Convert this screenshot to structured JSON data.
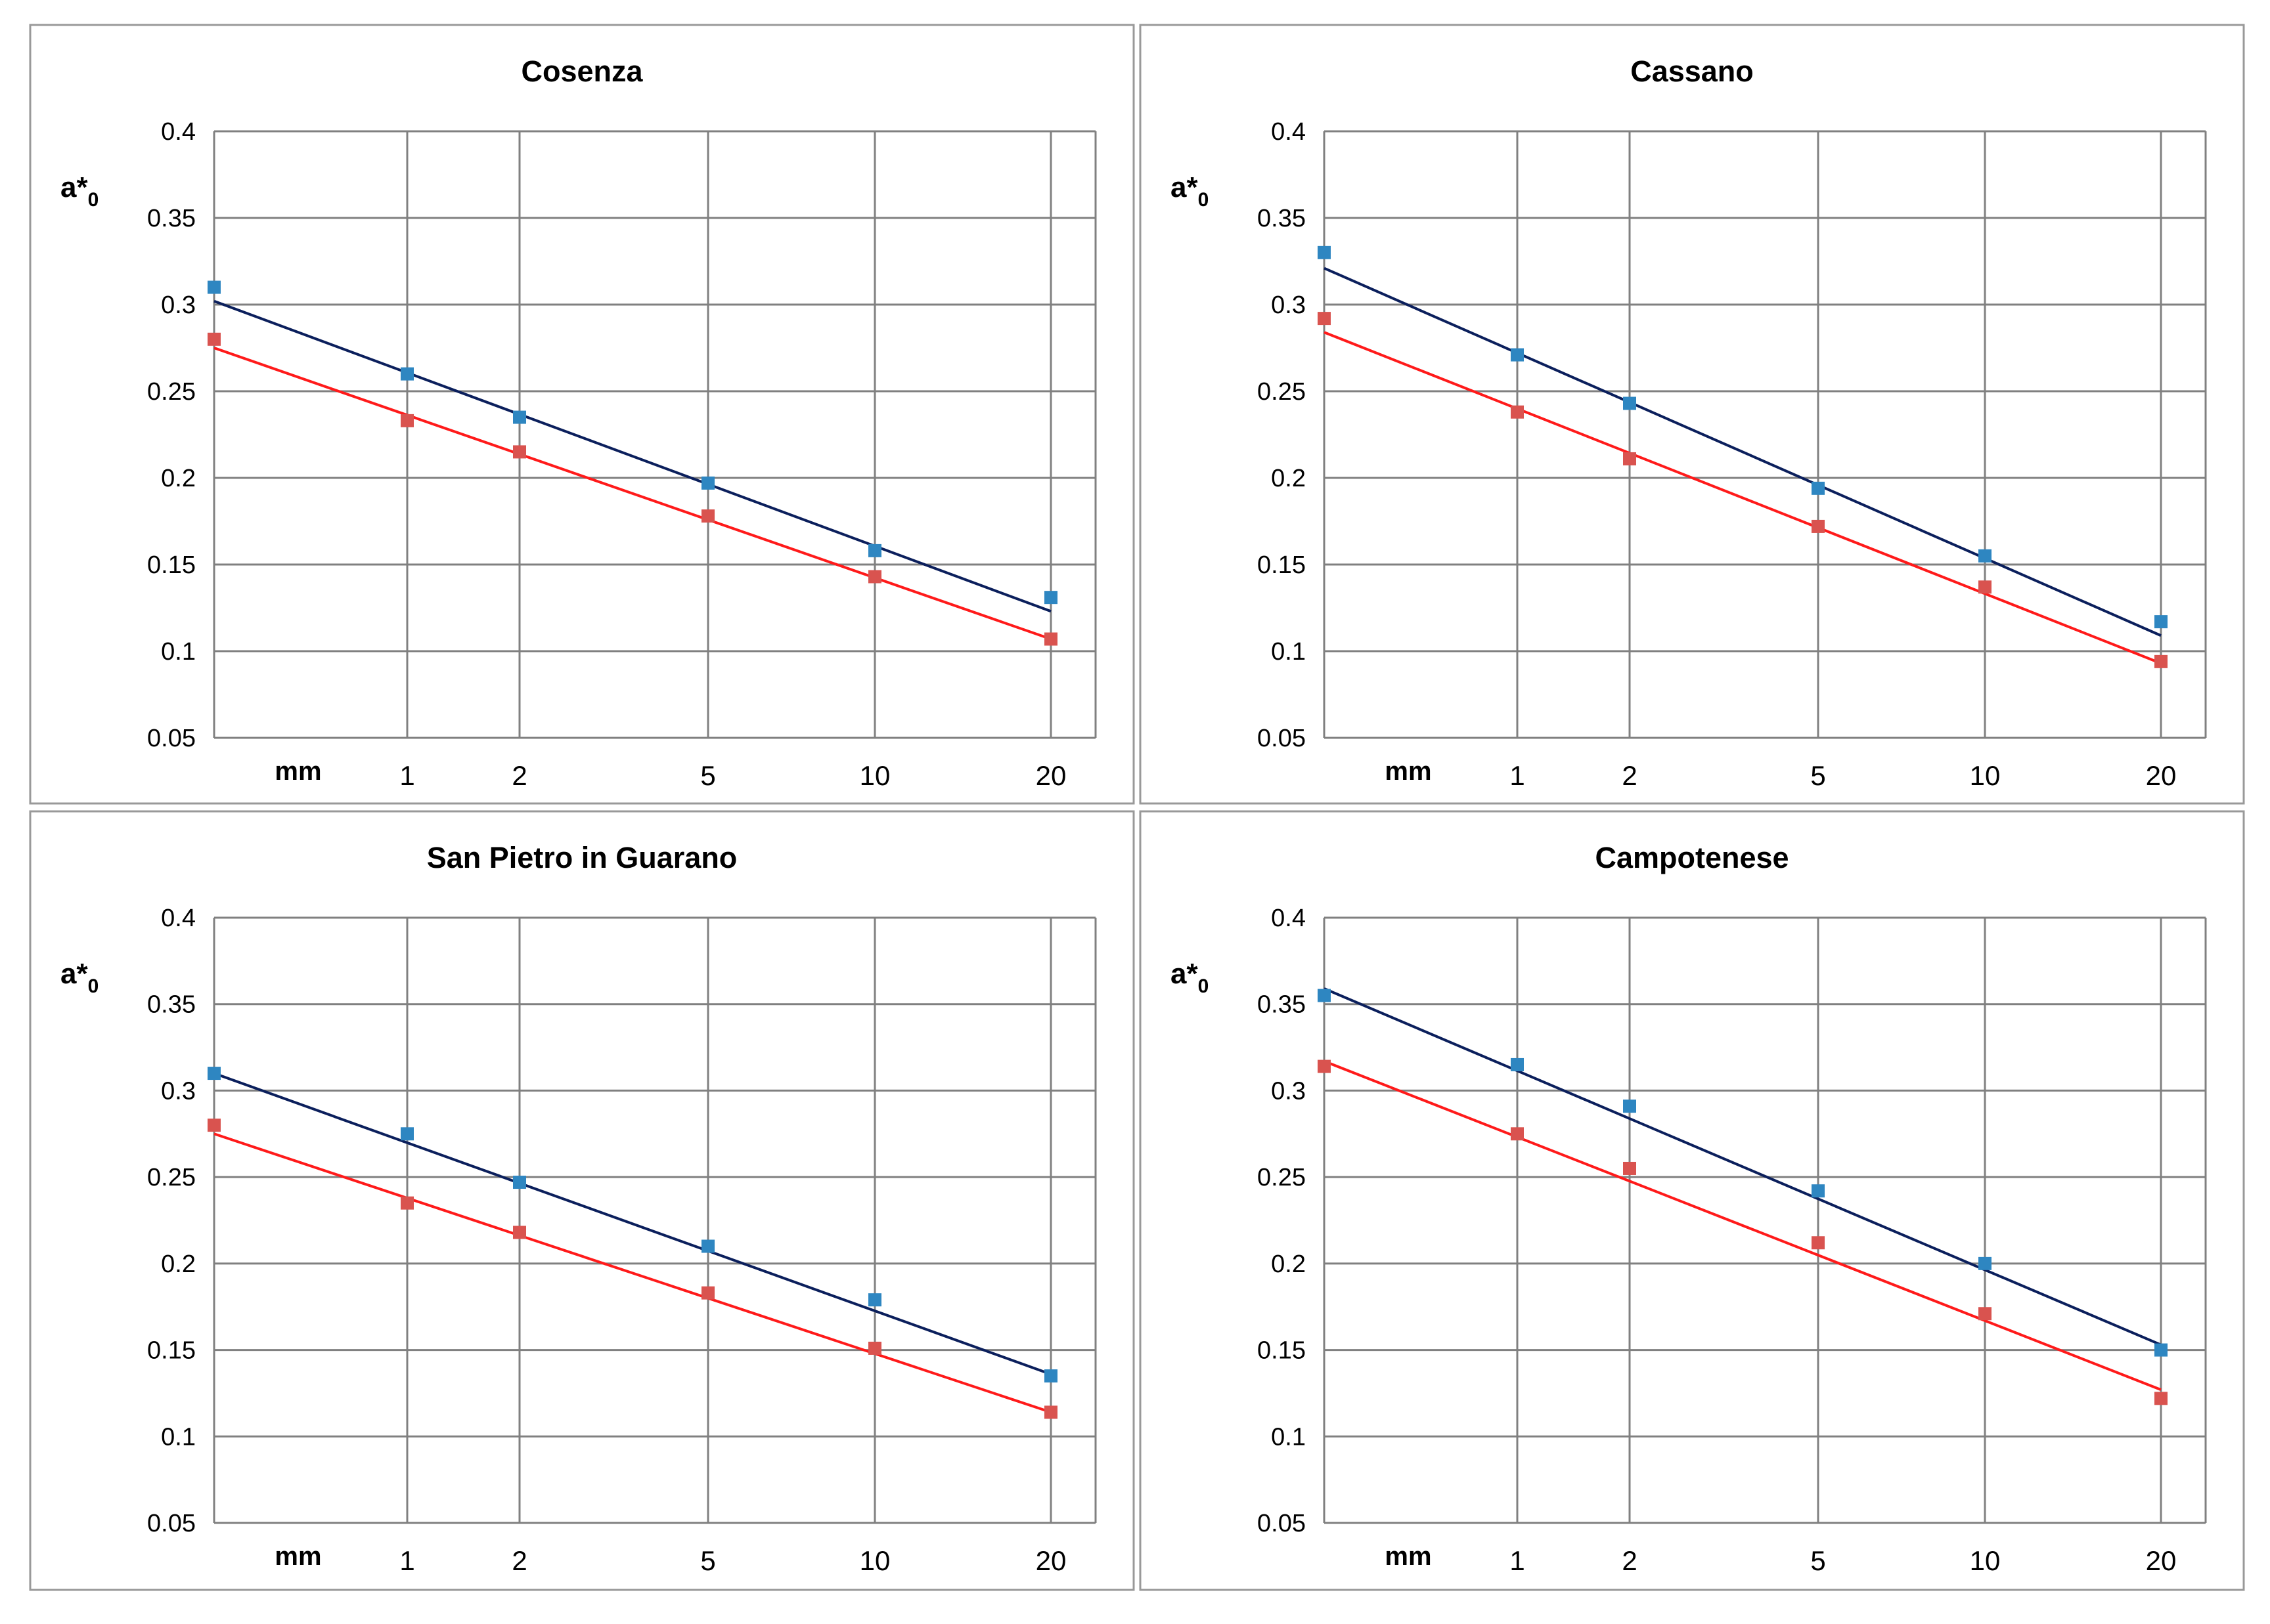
{
  "x_unit_label": "mm",
  "y_axis_label": "a*",
  "y_axis_label_sub": "0",
  "colors": {
    "blue_marker": "#2E86C1",
    "blue_line": "#0B1F5C",
    "red_marker": "#D9534F",
    "red_line": "#FF1A1A",
    "grid": "#808080",
    "frame": "#999999"
  },
  "chart_data": [
    {
      "type": "scatter",
      "title": "Cosenza",
      "xlabel": "mm",
      "ylabel": "a*0",
      "x_ticks": [
        1,
        2,
        5,
        10,
        20
      ],
      "y_ticks": [
        0.05,
        0.1,
        0.15,
        0.2,
        0.25,
        0.3,
        0.35,
        0.4
      ],
      "ylim": [
        0.05,
        0.4
      ],
      "series": [
        {
          "name": "blue",
          "x": [
            0.5,
            1,
            2,
            5,
            10,
            20
          ],
          "y": [
            0.31,
            0.26,
            0.235,
            0.197,
            0.158,
            0.131
          ],
          "fit": [
            0.302,
            0.123
          ]
        },
        {
          "name": "red",
          "x": [
            0.5,
            1,
            2,
            5,
            10,
            20
          ],
          "y": [
            0.28,
            0.233,
            0.215,
            0.178,
            0.143,
            0.107
          ],
          "fit": [
            0.275,
            0.107
          ]
        }
      ]
    },
    {
      "type": "scatter",
      "title": "Cassano",
      "xlabel": "mm",
      "ylabel": "a*0",
      "x_ticks": [
        1,
        2,
        5,
        10,
        20
      ],
      "y_ticks": [
        0.05,
        0.1,
        0.15,
        0.2,
        0.25,
        0.3,
        0.35,
        0.4
      ],
      "ylim": [
        0.05,
        0.4
      ],
      "series": [
        {
          "name": "blue",
          "x": [
            0.5,
            1,
            2,
            5,
            10,
            20
          ],
          "y": [
            0.33,
            0.271,
            0.243,
            0.194,
            0.155,
            0.117
          ],
          "fit": [
            0.321,
            0.109
          ]
        },
        {
          "name": "red",
          "x": [
            0.5,
            1,
            2,
            5,
            10,
            20
          ],
          "y": [
            0.292,
            0.238,
            0.211,
            0.172,
            0.137,
            0.094
          ],
          "fit": [
            0.284,
            0.093
          ]
        }
      ]
    },
    {
      "type": "scatter",
      "title": "San Pietro in Guarano",
      "xlabel": "mm",
      "ylabel": "a*0",
      "x_ticks": [
        1,
        2,
        5,
        10,
        20
      ],
      "y_ticks": [
        0.05,
        0.1,
        0.15,
        0.2,
        0.25,
        0.3,
        0.35,
        0.4
      ],
      "ylim": [
        0.05,
        0.4
      ],
      "series": [
        {
          "name": "blue",
          "x": [
            0.5,
            1,
            2,
            5,
            10,
            20
          ],
          "y": [
            0.31,
            0.275,
            0.247,
            0.21,
            0.179,
            0.135
          ],
          "fit": [
            0.31,
            0.136
          ]
        },
        {
          "name": "red",
          "x": [
            0.5,
            1,
            2,
            5,
            10,
            20
          ],
          "y": [
            0.28,
            0.235,
            0.218,
            0.183,
            0.151,
            0.114
          ],
          "fit": [
            0.275,
            0.114
          ]
        }
      ]
    },
    {
      "type": "scatter",
      "title": "Campotenese",
      "xlabel": "mm",
      "ylabel": "a*0",
      "x_ticks": [
        1,
        2,
        5,
        10,
        20
      ],
      "y_ticks": [
        0.05,
        0.1,
        0.15,
        0.2,
        0.25,
        0.3,
        0.35,
        0.4
      ],
      "ylim": [
        0.05,
        0.4
      ],
      "series": [
        {
          "name": "blue",
          "x": [
            0.5,
            1,
            2,
            5,
            10,
            20
          ],
          "y": [
            0.355,
            0.315,
            0.291,
            0.242,
            0.2,
            0.15
          ],
          "fit": [
            0.359,
            0.153
          ]
        },
        {
          "name": "red",
          "x": [
            0.5,
            1,
            2,
            5,
            10,
            20
          ],
          "y": [
            0.314,
            0.275,
            0.255,
            0.212,
            0.171,
            0.122
          ],
          "fit": [
            0.317,
            0.127
          ]
        }
      ]
    }
  ]
}
